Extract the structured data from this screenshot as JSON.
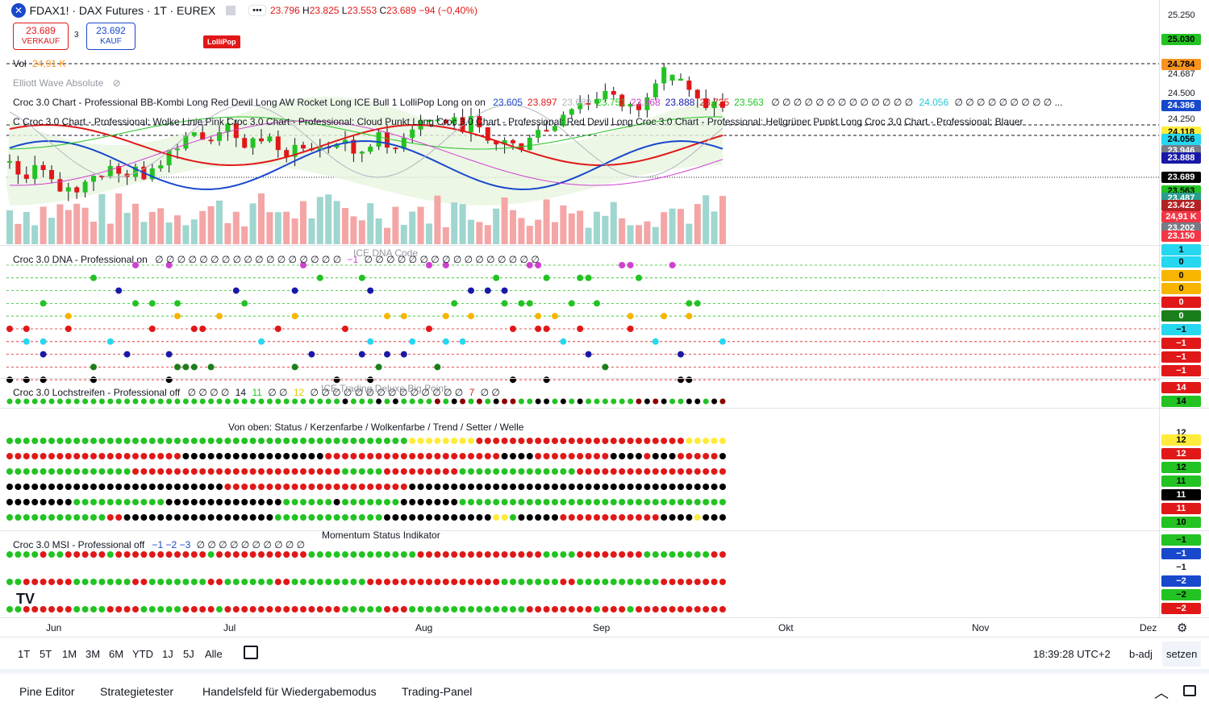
{
  "header": {
    "symbol": "FDAX1! · DAX Futures · 1T · EUREX",
    "ohlc": {
      "o": "23.796",
      "h": "23.825",
      "l": "23.553",
      "c": "23.689",
      "change": "−94 (−0,40%)"
    },
    "sell_price": "23.689",
    "sell_label": "VERKAUF",
    "spread": "3",
    "buy_price": "23.692",
    "buy_label": "KAUF",
    "lollipop_label": "LolliPop",
    "menu_dots": "•••"
  },
  "legends": {
    "vol_label": "Vol",
    "vol_value": "24,91 K",
    "elliott": "Elliott Wave Absolute",
    "croc_chart": "Croc 3.0 Chart - Professional BB-Kombi Long Red Devil Long AW Rocket Long ICE Bull 1 LolliPop Long on on",
    "croc_chart_values": [
      {
        "v": "23.605",
        "c": "#1848cc"
      },
      {
        "v": "23.897",
        "c": "#e01818"
      },
      {
        "v": "23.689",
        "c": "#b2b5be"
      },
      {
        "v": "23.751",
        "c": "#22c322"
      },
      {
        "v": "23.968",
        "c": "#d040d0"
      },
      {
        "v": "23.888",
        "c": "#1818a8"
      },
      {
        "v": "23.725",
        "c": "#e01818"
      },
      {
        "v": "23.563",
        "c": "#22c322"
      }
    ],
    "croc_chart_zeros": "∅ ∅ ∅ ∅ ∅ ∅ ∅ ∅ ∅ ∅ ∅ ∅ ∅",
    "croc_chart_cyan": "24.056",
    "croc_chart_tail": "∅ ∅ ∅ ∅ ∅ ∅ ∅ ∅ ∅ ...",
    "croc_chart2": "C  Croc 3.0 Chart - Professional: Wolke Linie Pink Croc 3.0 Chart - Professional: Cloud Punkt Long Croc 3.0 Chart - Professional: Red Devil Long Croc 3.0 Chart - Professional: Hellgrüner Punkt Long Croc 3.0 Chart - Professional: Blauer",
    "dna": "Croc 3.0 DNA - Professional on",
    "dna_values": "∅ ∅ ∅ ∅ ∅ ∅ ∅ ∅ ∅ ∅ ∅ ∅ ∅ ∅ ∅ ∅ ∅",
    "dna_neg": "−1",
    "dna_values2": "∅ ∅ ∅ ∅ ∅ ∅ ∅ ∅ ∅ ∅ ∅ ∅ ∅ ∅ ∅ ∅",
    "dna_title": "ICE DNA Code",
    "loch": "Croc 3.0 Lochstreifen - Professional off",
    "loch_values": "∅ ∅ ∅ ∅",
    "loch_14": "14",
    "loch_11": "11",
    "loch_zz": "∅ ∅",
    "loch_12": "12",
    "loch_rest": "∅ ∅ ∅ ∅ ∅ ∅ ∅ ∅ ∅ ∅ ∅ ∅ ∅ ∅",
    "loch_7": "7",
    "loch_end": "∅ ∅",
    "loch_title": "ICE Trading Deluxe Big Point",
    "stripes_title": "Von oben: Status / Kerzenfarbe / Wolkenfarbe / Trend / Setter / Welle",
    "msi": "Croc 3.0 MSI - Professional off",
    "msi_neg": "−1  −2  −3",
    "msi_zeros": "∅ ∅ ∅ ∅ ∅ ∅ ∅ ∅ ∅ ∅",
    "msi_title": "Momentum Status Indikator"
  },
  "price_scale": {
    "ticks": [
      {
        "v": "25.250"
      },
      {
        "v": "24.687"
      },
      {
        "v": "24.500"
      },
      {
        "v": "24.250"
      }
    ],
    "badges": [
      {
        "v": "25.030",
        "bg": "#22c322",
        "fg": "#000000"
      },
      {
        "v": "24.784",
        "bg": "#f7931e",
        "fg": "#000000"
      },
      {
        "v": "24.386",
        "bg": "#1848cc",
        "fg": "#ffffff"
      },
      {
        "v": "24.118",
        "bg": "#ffeb3b",
        "fg": "#000000"
      },
      {
        "v": "24.056",
        "bg": "#26d7f0",
        "fg": "#000000"
      },
      {
        "v": "23.946",
        "bg": "#787b86",
        "fg": "#ffffff"
      },
      {
        "v": "23.888",
        "bg": "#1818a8",
        "fg": "#ffffff"
      },
      {
        "v": "23.689",
        "bg": "#000000",
        "fg": "#ffffff"
      },
      {
        "v": "23.563",
        "bg": "#22c322",
        "fg": "#000000"
      },
      {
        "v": "23.487",
        "bg": "#2a9d8f",
        "fg": "#ffffff"
      },
      {
        "v": "23.422",
        "bg": "#b22222",
        "fg": "#ffffff"
      },
      {
        "v": "24,91 K",
        "bg": "#f23645",
        "fg": "#ffffff"
      },
      {
        "v": "23.202",
        "bg": "#787b86",
        "fg": "#ffffff"
      },
      {
        "v": "23.150",
        "bg": "#f23645",
        "fg": "#ffffff"
      }
    ],
    "dna": [
      {
        "v": "1",
        "bg": "#26d7f0",
        "fg": "#000000"
      },
      {
        "v": "0",
        "bg": "#26d7f0",
        "fg": "#000000"
      },
      {
        "v": "0",
        "bg": "#f7b500",
        "fg": "#000000"
      },
      {
        "v": "0",
        "bg": "#f7b500",
        "fg": "#000000"
      },
      {
        "v": "0",
        "bg": "#e01818",
        "fg": "#ffffff"
      },
      {
        "v": "0",
        "bg": "#1a7f1a",
        "fg": "#ffffff"
      },
      {
        "v": "−1",
        "bg": "#26d7f0",
        "fg": "#000000"
      },
      {
        "v": "−1",
        "bg": "#e01818",
        "fg": "#ffffff"
      },
      {
        "v": "−1",
        "bg": "#e01818",
        "fg": "#ffffff"
      },
      {
        "v": "−1",
        "bg": "#e01818",
        "fg": "#ffffff"
      }
    ],
    "loch": [
      {
        "v": "14",
        "bg": "#e01818",
        "fg": "#ffffff"
      },
      {
        "v": "14",
        "bg": "#22c322",
        "fg": "#000000"
      }
    ],
    "stripes": [
      {
        "v": "12",
        "bg": "transparent",
        "fg": "#131722"
      },
      {
        "v": "12",
        "bg": "#ffeb3b",
        "fg": "#000000"
      },
      {
        "v": "12",
        "bg": "#e01818",
        "fg": "#ffffff"
      },
      {
        "v": "12",
        "bg": "#22c322",
        "fg": "#000000"
      },
      {
        "v": "11",
        "bg": "#22c322",
        "fg": "#000000"
      },
      {
        "v": "11",
        "bg": "#000000",
        "fg": "#ffffff"
      },
      {
        "v": "11",
        "bg": "#e01818",
        "fg": "#ffffff"
      },
      {
        "v": "10",
        "bg": "#22c322",
        "fg": "#000000"
      }
    ],
    "msi": [
      {
        "v": "−1",
        "bg": "#22c322",
        "fg": "#000000"
      },
      {
        "v": "−1",
        "bg": "#1848cc",
        "fg": "#ffffff"
      },
      {
        "v": "−1",
        "bg": "transparent",
        "fg": "#131722"
      },
      {
        "v": "−2",
        "bg": "#1848cc",
        "fg": "#ffffff"
      },
      {
        "v": "−2",
        "bg": "#22c322",
        "fg": "#000000"
      },
      {
        "v": "−2",
        "bg": "#e01818",
        "fg": "#ffffff"
      }
    ]
  },
  "time_axis": {
    "months": [
      "Jun",
      "Jul",
      "Aug",
      "Sep",
      "Okt",
      "Nov",
      "Dez"
    ]
  },
  "range_bar": {
    "buttons": [
      "1T",
      "5T",
      "1M",
      "3M",
      "6M",
      "YTD",
      "1J",
      "5J",
      "Alle"
    ],
    "clock": "18:39:28 UTC+2",
    "b_adj": "b-adj",
    "setzen": "setzen"
  },
  "bottom_bar": {
    "tabs": [
      "Pine Editor",
      "Strategietester",
      "Handelsfeld für Wiedergabemodus",
      "Trading-Panel"
    ]
  },
  "colors": {
    "up": "#26a69a",
    "down": "#ef5350",
    "bg": "#ffffff"
  },
  "tv_logo": "TV"
}
